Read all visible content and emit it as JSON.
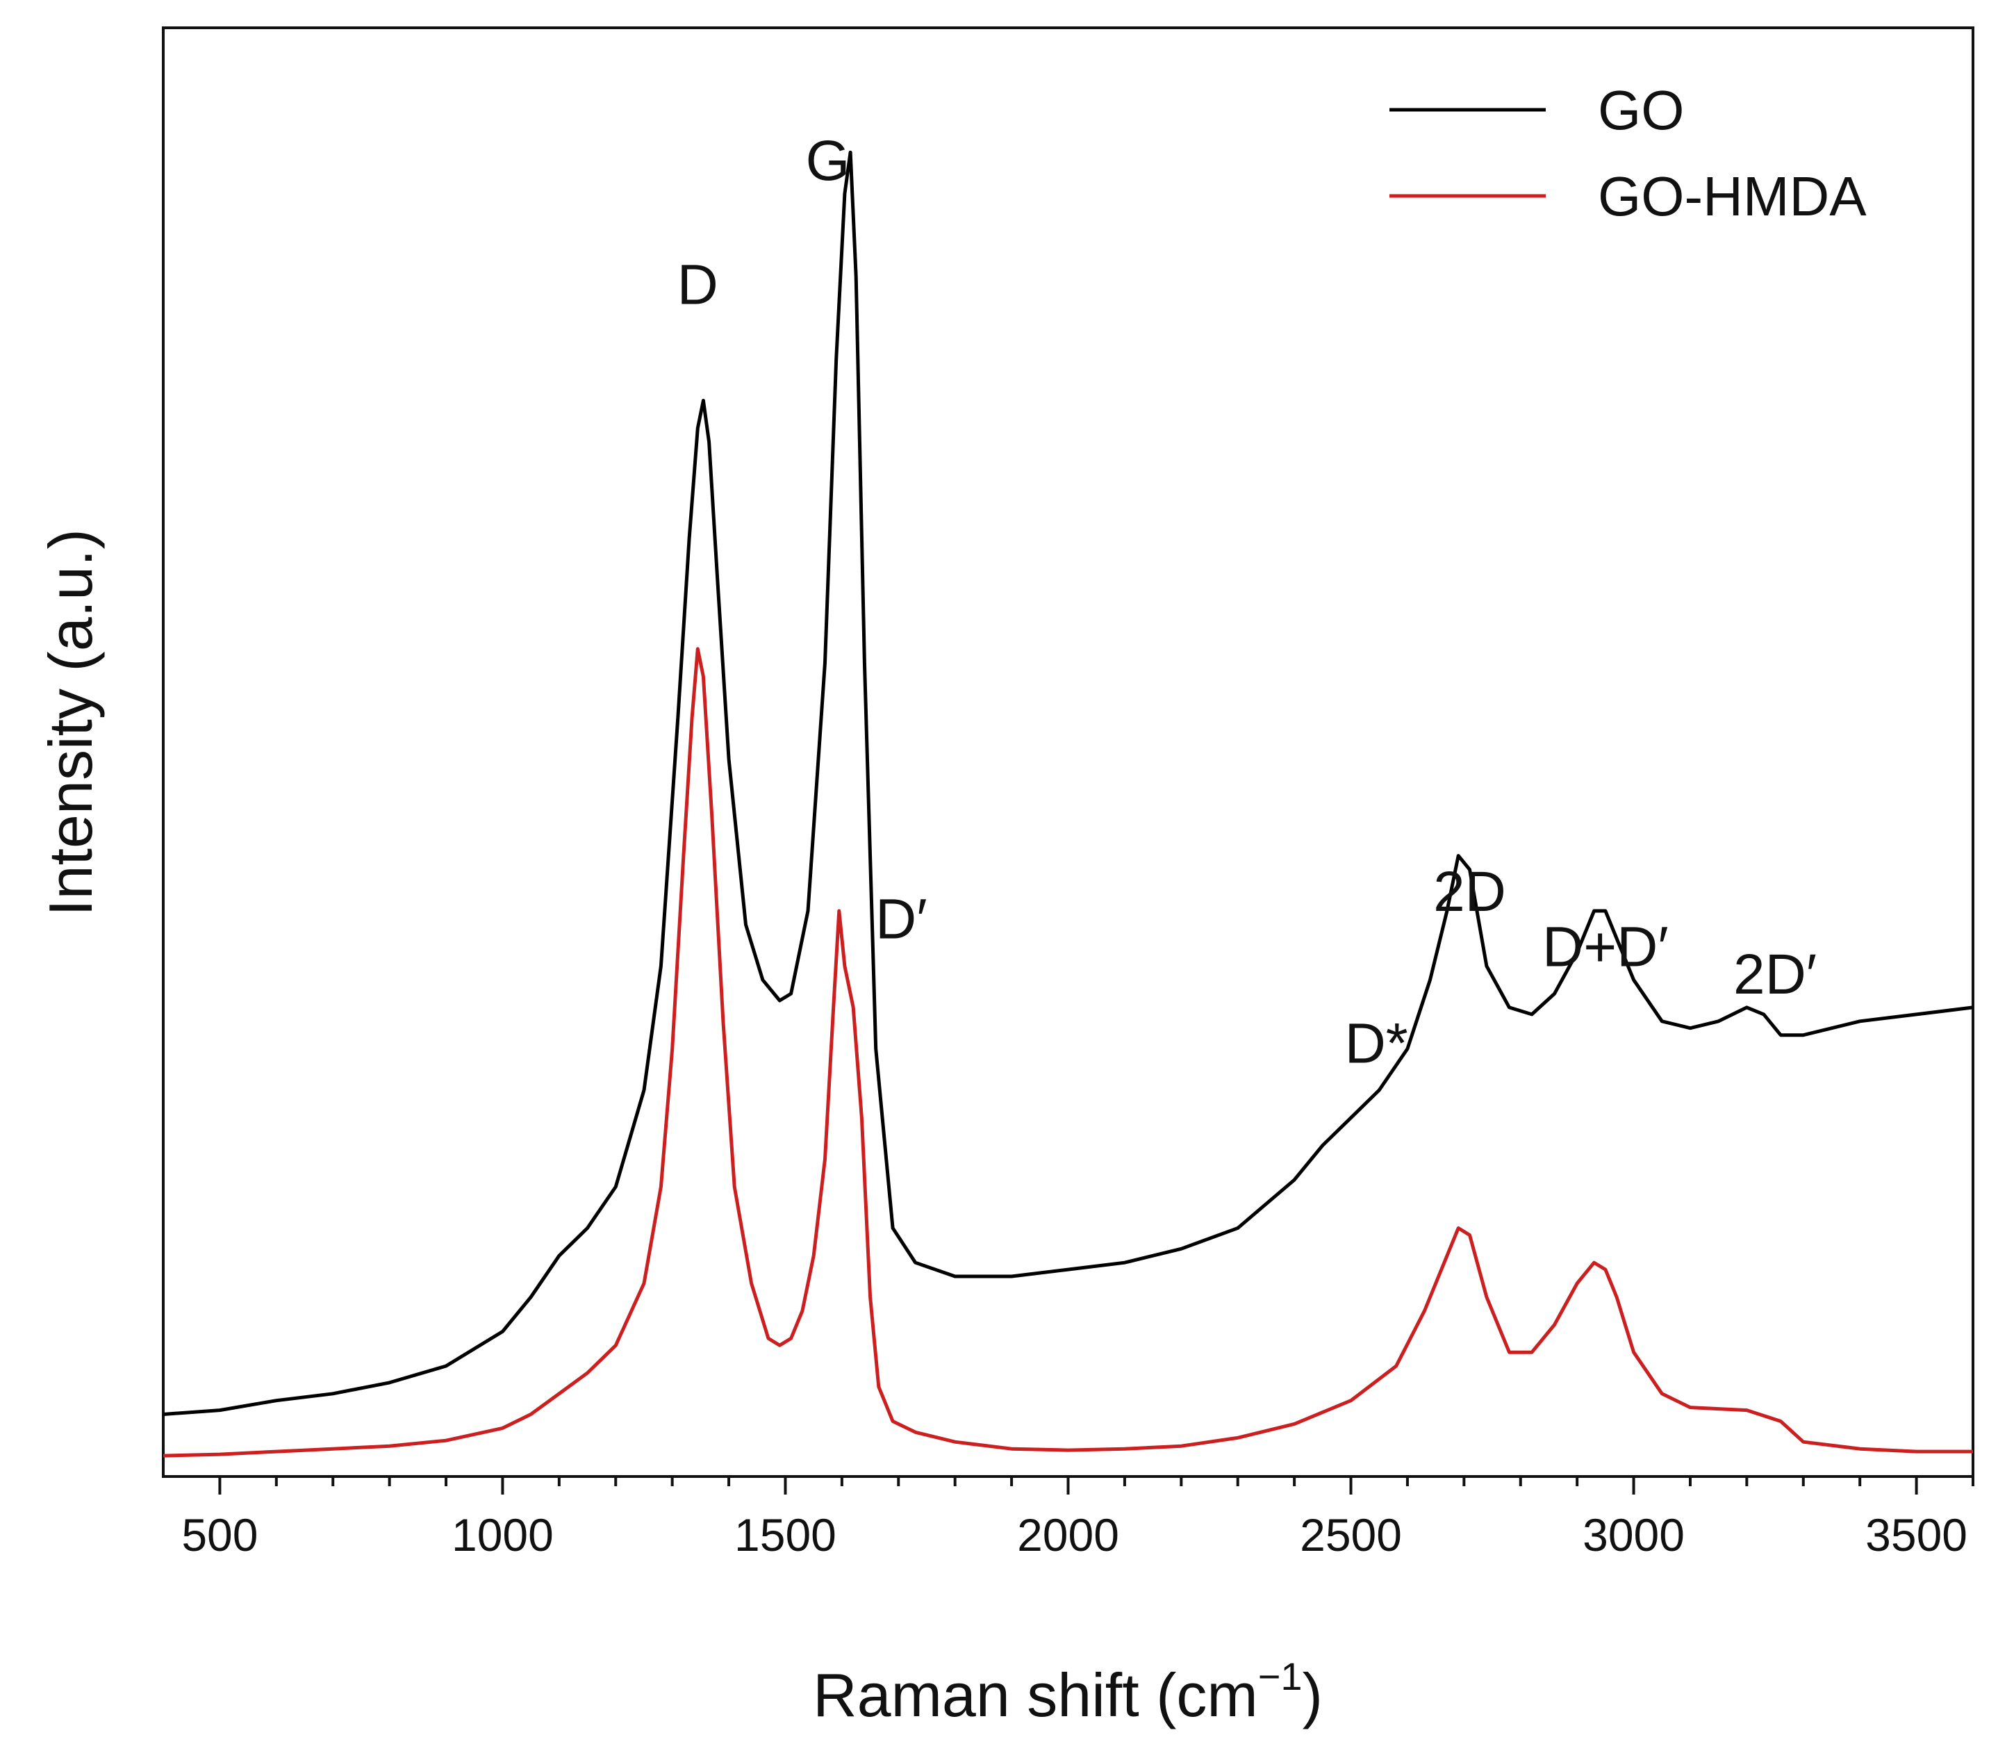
{
  "chart_data": {
    "type": "line",
    "title": "",
    "xlabel": "Raman shift (cm",
    "xlabel_sup": "−1",
    "xlabel_close": ")",
    "ylabel": "Intensity (a.u.)",
    "xlim": [
      400,
      3600
    ],
    "ylim": [
      0,
      100
    ],
    "xticks": [
      "500",
      "1000",
      "1500",
      "2000",
      "2500",
      "3000",
      "3500"
    ],
    "yticks_visible": false,
    "legend_position": "top-right",
    "series": [
      {
        "name": "GO",
        "color": "#000000",
        "x": [
          400,
          500,
          600,
          700,
          800,
          900,
          1000,
          1050,
          1100,
          1150,
          1200,
          1250,
          1280,
          1310,
          1330,
          1345,
          1355,
          1365,
          1380,
          1400,
          1430,
          1460,
          1490,
          1510,
          1540,
          1570,
          1590,
          1605,
          1615,
          1625,
          1640,
          1660,
          1690,
          1730,
          1800,
          1900,
          2000,
          2100,
          2200,
          2300,
          2400,
          2450,
          2500,
          2550,
          2600,
          2640,
          2670,
          2690,
          2710,
          2740,
          2780,
          2820,
          2860,
          2900,
          2930,
          2950,
          2970,
          3000,
          3050,
          3100,
          3150,
          3200,
          3230,
          3260,
          3300,
          3400,
          3500,
          3600
        ],
        "y": [
          3.5,
          3.8,
          4.5,
          5.0,
          5.8,
          7.0,
          9.5,
          12.0,
          15.0,
          17.0,
          20.0,
          27.0,
          36.0,
          54.0,
          67.0,
          75.0,
          77.0,
          74.0,
          64.0,
          51.0,
          39.0,
          35.0,
          33.5,
          34.0,
          40.0,
          58.0,
          80.0,
          92.0,
          95.0,
          86.0,
          58.0,
          30.0,
          17.0,
          14.5,
          13.5,
          13.5,
          14.0,
          14.5,
          15.5,
          17.0,
          20.5,
          23.0,
          25.0,
          27.0,
          30.0,
          35.0,
          40.0,
          44.0,
          43.0,
          36.0,
          33.0,
          32.5,
          34.0,
          37.0,
          40.0,
          40.0,
          38.0,
          35.0,
          32.0,
          31.5,
          32.0,
          33.0,
          32.5,
          31.0,
          31.0,
          32.0,
          32.5,
          33.0
        ]
      },
      {
        "name": "GO-HMDA",
        "color": "#cc1f1f",
        "x": [
          400,
          500,
          600,
          700,
          800,
          900,
          1000,
          1050,
          1100,
          1150,
          1200,
          1250,
          1280,
          1300,
          1320,
          1335,
          1345,
          1355,
          1370,
          1390,
          1410,
          1440,
          1470,
          1490,
          1510,
          1530,
          1550,
          1570,
          1585,
          1595,
          1605,
          1620,
          1635,
          1650,
          1665,
          1690,
          1730,
          1800,
          1900,
          2000,
          2100,
          2200,
          2300,
          2400,
          2500,
          2580,
          2630,
          2670,
          2690,
          2710,
          2740,
          2780,
          2820,
          2860,
          2900,
          2930,
          2950,
          2970,
          3000,
          3050,
          3100,
          3200,
          3260,
          3300,
          3400,
          3500,
          3600
        ],
        "y": [
          0.5,
          0.6,
          0.8,
          1.0,
          1.2,
          1.6,
          2.5,
          3.5,
          5.0,
          6.5,
          8.5,
          13.0,
          20.0,
          30.0,
          44.0,
          54.0,
          59.0,
          57.0,
          47.0,
          32.0,
          20.0,
          13.0,
          9.0,
          8.5,
          9.0,
          11.0,
          15.0,
          22.0,
          33.0,
          40.0,
          36.0,
          33.0,
          25.0,
          12.0,
          5.5,
          3.0,
          2.2,
          1.5,
          1.0,
          0.9,
          1.0,
          1.2,
          1.8,
          2.8,
          4.5,
          7.0,
          11.0,
          15.0,
          17.0,
          16.5,
          12.0,
          8.0,
          8.0,
          10.0,
          13.0,
          14.5,
          14.0,
          12.0,
          8.0,
          5.0,
          4.0,
          3.8,
          3.0,
          1.5,
          1.0,
          0.8,
          0.8
        ]
      }
    ],
    "annotations": [
      {
        "text": "D",
        "x": 1345,
        "y": 84
      },
      {
        "text": "G",
        "x": 1575,
        "y": 93
      },
      {
        "text": "D′",
        "x": 1705,
        "y": 38
      },
      {
        "text": "D*",
        "x": 2545,
        "y": 29
      },
      {
        "text": "2D",
        "x": 2710,
        "y": 40
      },
      {
        "text": "D+D′",
        "x": 2950,
        "y": 36
      },
      {
        "text": "2D′",
        "x": 3250,
        "y": 34
      }
    ]
  }
}
